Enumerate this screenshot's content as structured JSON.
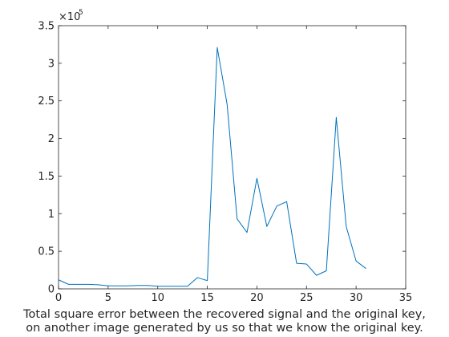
{
  "caption": {
    "line1": "Total square error between the recovered signal and the original key,",
    "line2": "on another image generated by us so that we know the original key."
  },
  "chart_data": {
    "type": "line",
    "title": "",
    "xlabel": "",
    "ylabel": "",
    "xlim": [
      0,
      35
    ],
    "ylim": [
      0,
      350000
    ],
    "x_ticks": [
      0,
      5,
      10,
      15,
      20,
      25,
      30,
      35
    ],
    "x_tick_labels": [
      "0",
      "5",
      "10",
      "15",
      "20",
      "25",
      "30",
      "35"
    ],
    "y_ticks": [
      0,
      50000,
      100000,
      150000,
      200000,
      250000,
      300000,
      350000
    ],
    "y_tick_labels": [
      "0",
      "0.5",
      "1",
      "1.5",
      "2",
      "2.5",
      "3",
      "3.5"
    ],
    "y_exponent": {
      "base": "×10",
      "power": "5"
    },
    "grid": false,
    "line_color": "#0072bd",
    "series": [
      {
        "x": [
          0,
          1,
          2,
          3,
          4,
          5,
          6,
          7,
          8,
          9,
          10,
          11,
          12,
          13,
          14,
          15,
          16,
          17,
          18,
          19,
          20,
          21,
          22,
          23,
          24,
          25,
          26,
          27,
          28,
          29,
          30,
          31
        ],
        "values": [
          12000,
          6000,
          6000,
          6000,
          5500,
          4000,
          4000,
          4000,
          4500,
          4500,
          3500,
          3500,
          3500,
          3500,
          15000,
          11000,
          321000,
          245000,
          93000,
          75000,
          147000,
          83000,
          110000,
          116000,
          34000,
          33000,
          18000,
          24000,
          228000,
          83000,
          37000,
          27000
        ]
      }
    ]
  }
}
